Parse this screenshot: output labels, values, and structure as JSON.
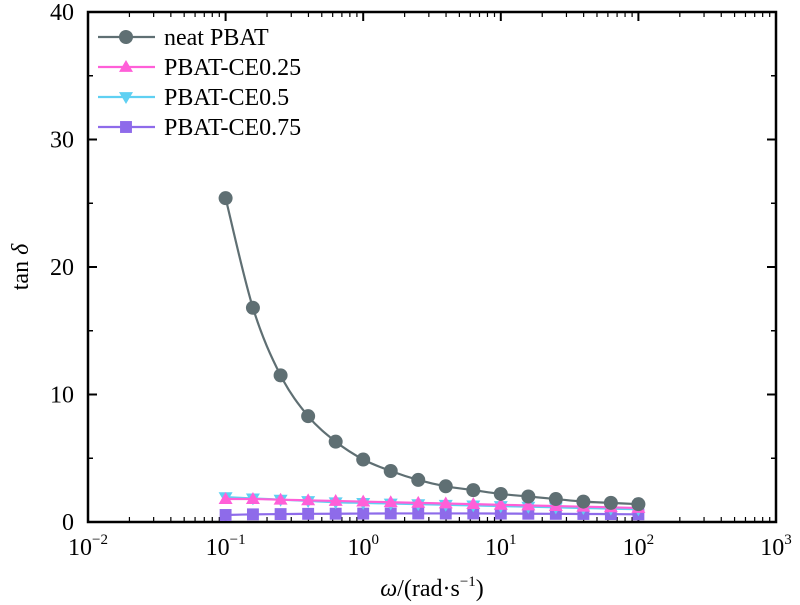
{
  "chart_data": {
    "type": "line",
    "x_scale": "log",
    "xlabel": "ω/(rad·s⁻¹)",
    "xlabel_parts": {
      "sym": "ω",
      "unit": "/(rad·s",
      "exp": "−1",
      "close": ")"
    },
    "ylabel": "tan δ",
    "ylabel_parts": {
      "main": "tan ",
      "sym": "δ"
    },
    "xlim": [
      0.01,
      1000
    ],
    "ylim": [
      0,
      40
    ],
    "x_ticks": [
      {
        "base": "10",
        "exp": "−2",
        "value": 0.01
      },
      {
        "base": "10",
        "exp": "−1",
        "value": 0.1
      },
      {
        "base": "10",
        "exp": "0",
        "value": 1
      },
      {
        "base": "10",
        "exp": "1",
        "value": 10
      },
      {
        "base": "10",
        "exp": "2",
        "value": 100
      },
      {
        "base": "10",
        "exp": "3",
        "value": 1000
      }
    ],
    "y_ticks": [
      {
        "label": "0",
        "value": 0
      },
      {
        "label": "10",
        "value": 10
      },
      {
        "label": "20",
        "value": 20
      },
      {
        "label": "30",
        "value": 30
      },
      {
        "label": "40",
        "value": 40
      }
    ],
    "legend_position": "top-left",
    "x": [
      0.1,
      0.158,
      0.251,
      0.398,
      0.631,
      1.0,
      1.585,
      2.512,
      3.981,
      6.31,
      10.0,
      15.85,
      25.12,
      39.81,
      63.1,
      100.0
    ],
    "series": [
      {
        "name": "neat PBAT",
        "color": "#5f6f73",
        "marker": "circle",
        "values": [
          25.4,
          16.8,
          11.5,
          8.3,
          6.3,
          4.9,
          4.0,
          3.3,
          2.8,
          2.5,
          2.2,
          2.0,
          1.8,
          1.6,
          1.5,
          1.4
        ]
      },
      {
        "name": "PBAT-CE0.25",
        "color": "#ff5fd8",
        "marker": "triangle-up",
        "values": [
          1.8,
          1.8,
          1.75,
          1.7,
          1.65,
          1.6,
          1.55,
          1.5,
          1.45,
          1.4,
          1.35,
          1.3,
          1.25,
          1.2,
          1.15,
          1.1
        ]
      },
      {
        "name": "PBAT-CE0.5",
        "color": "#5fd0f2",
        "marker": "triangle-down",
        "values": [
          1.95,
          1.85,
          1.75,
          1.65,
          1.55,
          1.5,
          1.45,
          1.4,
          1.35,
          1.3,
          1.25,
          1.2,
          1.15,
          1.1,
          1.05,
          1.0
        ]
      },
      {
        "name": "PBAT-CE0.75",
        "color": "#8e6bea",
        "marker": "square",
        "values": [
          0.55,
          0.6,
          0.62,
          0.64,
          0.65,
          0.66,
          0.67,
          0.67,
          0.67,
          0.67,
          0.66,
          0.65,
          0.64,
          0.63,
          0.62,
          0.6
        ]
      }
    ]
  }
}
